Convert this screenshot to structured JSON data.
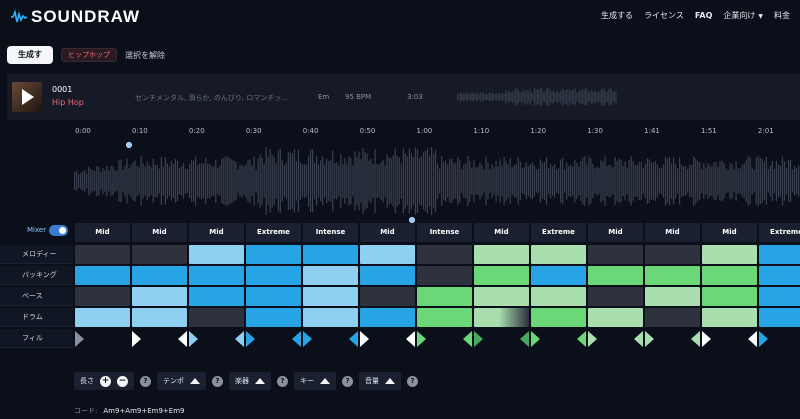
{
  "brand": {
    "name": "SOUNDRAW"
  },
  "nav": {
    "generate": "生成する",
    "license": "ライセンス",
    "faq": "FAQ",
    "enterprise": "企業向け",
    "pricing": "料金"
  },
  "filters": {
    "generate_button": "生成する",
    "genre_chip": "ヒップホップ",
    "clear": "選択を解除"
  },
  "track": {
    "id": "0001",
    "genre": "Hip Hop",
    "mood": "センチメンタル, 滑らか, のんびり, ロマンチッ...",
    "key": "Em",
    "bpm": "95 BPM",
    "duration": "3:03"
  },
  "timeline": {
    "ticks": [
      "0:00",
      "0:10",
      "0:20",
      "0:30",
      "0:40",
      "0:50",
      "1:00",
      "1:10",
      "1:20",
      "1:30",
      "1:41",
      "1:51",
      "2:01"
    ]
  },
  "mixer": {
    "label": "Mixer",
    "intensity": [
      "Mid",
      "Mid",
      "Mid",
      "Extreme",
      "Intense",
      "Mid",
      "Intense",
      "Mid",
      "Extreme",
      "Mid",
      "Mid",
      "Mid",
      "Extreme"
    ],
    "rows": [
      "メロディー",
      "バッキング",
      "ベース",
      "ドラム",
      "フィル"
    ]
  },
  "controls": {
    "length": "長さ",
    "tempo": "テンポ",
    "instrument": "楽器",
    "key": "キー",
    "volume": "音量"
  },
  "chord": {
    "label": "コード:",
    "value": "Am9+Am9+Em9+Em9"
  },
  "colors": {
    "off": "#2d323d",
    "blue": "#27a4e5",
    "light_blue": "#8ed0f2",
    "green": "#6ad876",
    "light_green": "#a9dfae"
  }
}
